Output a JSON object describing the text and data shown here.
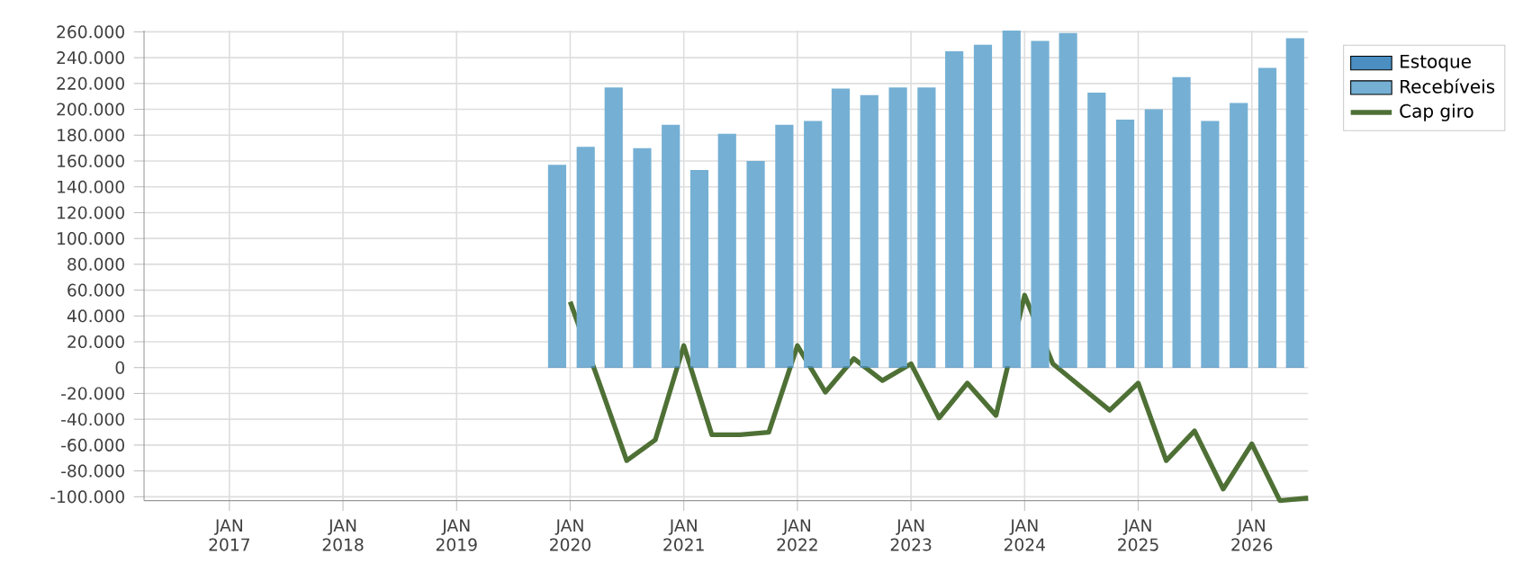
{
  "chart_data": {
    "type": "bar",
    "stacked": true,
    "grid": true,
    "legend": "top right",
    "xlim": [
      "2016-04",
      "2026-07"
    ],
    "xticks": [
      {
        "value": "2017-01",
        "label": "JAN 2017"
      },
      {
        "value": "2018-01",
        "label": "JAN 2018"
      },
      {
        "value": "2019-01",
        "label": "JAN 2019"
      },
      {
        "value": "2020-01",
        "label": "JAN 2020"
      },
      {
        "value": "2021-01",
        "label": "JAN 2021"
      },
      {
        "value": "2022-01",
        "label": "JAN 2022"
      },
      {
        "value": "2023-01",
        "label": "JAN 2023"
      },
      {
        "value": "2024-01",
        "label": "JAN 2024"
      },
      {
        "value": "2025-01",
        "label": "JAN 2025"
      },
      {
        "value": "2026-01",
        "label": "JAN 2026"
      }
    ],
    "ylim": [
      -103000,
      261000
    ],
    "yticks": [
      {
        "value": -100000,
        "label": "-100.000"
      },
      {
        "value": -80000,
        "label": "-80.000"
      },
      {
        "value": -60000,
        "label": "-60.000"
      },
      {
        "value": -40000,
        "label": "-40.000"
      },
      {
        "value": -20000,
        "label": "-20.000"
      },
      0,
      {
        "value": 20000,
        "label": "20.000"
      },
      {
        "value": 40000,
        "label": "40.000"
      },
      {
        "value": 60000,
        "label": "60.000"
      },
      {
        "value": 80000,
        "label": "80.000"
      },
      {
        "value": 100000,
        "label": "100.000"
      },
      {
        "value": 120000,
        "label": "120.000"
      },
      {
        "value": 140000,
        "label": "140.000"
      },
      {
        "value": 160000,
        "label": "160.000"
      },
      {
        "value": 180000,
        "label": "180.000"
      },
      {
        "value": 200000,
        "label": "200.000"
      },
      {
        "value": 220000,
        "label": "220.000"
      },
      {
        "value": 240000,
        "label": "240.000"
      },
      {
        "value": 260000,
        "label": "260.000"
      }
    ],
    "x": [
      "2019-11-20",
      "2020-02-20",
      "2020-05-20",
      "2020-08-20",
      "2020-11-20",
      "2021-02-20",
      "2021-05-20",
      "2021-08-20",
      "2021-11-20",
      "2022-02-20",
      "2022-05-20",
      "2022-08-20",
      "2022-11-20",
      "2023-02-20",
      "2023-05-20",
      "2023-08-20",
      "2023-11-20",
      "2024-02-20",
      "2024-05-20",
      "2024-08-20",
      "2024-11-20",
      "2025-02-20",
      "2025-05-20",
      "2025-08-20",
      "2025-11-20",
      "2026-02-20",
      "2026-05-20"
    ],
    "series": [
      {
        "name": "Estoque",
        "color": "#4a8ec2",
        "values": [
          1000,
          1000,
          1000,
          1000,
          1000,
          1000,
          1000,
          1000,
          1000,
          1000,
          1000,
          1000,
          1000,
          1000,
          1000,
          1000,
          1000,
          1000,
          1000,
          1000,
          1000,
          1000,
          1000,
          1000,
          1000,
          1000,
          1000
        ]
      },
      {
        "name": "Recebíveis",
        "color": "#75b0d4",
        "values": [
          156000,
          170000,
          216000,
          169000,
          187000,
          152000,
          180000,
          159000,
          187000,
          190000,
          215000,
          210000,
          216000,
          216000,
          244000,
          249000,
          260000,
          252000,
          258000,
          212000,
          191000,
          199000,
          224000,
          190000,
          204000,
          231000,
          254000
        ]
      },
      {
        "name": "Cap giro",
        "type": "line",
        "color": "#4e7035",
        "x": [
          "2020-01",
          "2020-04",
          "2020-07",
          "2020-10",
          "2021-01",
          "2021-04",
          "2021-07",
          "2021-10",
          "2022-01",
          "2022-04",
          "2022-07",
          "2022-10",
          "2023-01",
          "2023-04",
          "2023-07",
          "2023-10",
          "2024-01",
          "2024-04",
          "2024-07",
          "2024-10",
          "2025-01",
          "2025-04",
          "2025-07",
          "2025-10",
          "2026-01",
          "2026-04",
          "2026-07"
        ],
        "values": [
          51000,
          -10000,
          -72000,
          -56000,
          17000,
          -52000,
          -52000,
          -50000,
          17000,
          -19000,
          7000,
          -10000,
          3000,
          -39000,
          -12000,
          -37000,
          56000,
          3000,
          -15000,
          -33000,
          -12000,
          -72000,
          -49000,
          -94000,
          -59000,
          -103000,
          -101000
        ]
      }
    ]
  }
}
